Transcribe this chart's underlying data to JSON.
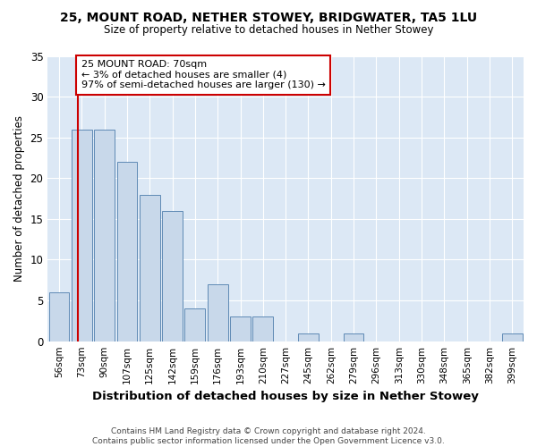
{
  "title1": "25, MOUNT ROAD, NETHER STOWEY, BRIDGWATER, TA5 1LU",
  "title2": "Size of property relative to detached houses in Nether Stowey",
  "xlabel": "Distribution of detached houses by size in Nether Stowey",
  "ylabel": "Number of detached properties",
  "categories": [
    "56sqm",
    "73sqm",
    "90sqm",
    "107sqm",
    "125sqm",
    "142sqm",
    "159sqm",
    "176sqm",
    "193sqm",
    "210sqm",
    "227sqm",
    "245sqm",
    "262sqm",
    "279sqm",
    "296sqm",
    "313sqm",
    "330sqm",
    "348sqm",
    "365sqm",
    "382sqm",
    "399sqm"
  ],
  "values": [
    6,
    26,
    26,
    22,
    18,
    16,
    4,
    7,
    3,
    3,
    0,
    1,
    0,
    1,
    0,
    0,
    0,
    0,
    0,
    0,
    1
  ],
  "bar_color": "#c8d8ea",
  "bar_edge_color": "#5f8ab5",
  "plot_bg_color": "#dce8f5",
  "fig_bg_color": "#ffffff",
  "grid_color": "#ffffff",
  "vline_color": "#cc0000",
  "annotation_text": "25 MOUNT ROAD: 70sqm\n← 3% of detached houses are smaller (4)\n97% of semi-detached houses are larger (130) →",
  "annotation_box_facecolor": "#ffffff",
  "annotation_box_edgecolor": "#cc0000",
  "footnote": "Contains HM Land Registry data © Crown copyright and database right 2024.\nContains public sector information licensed under the Open Government Licence v3.0.",
  "ylim": [
    0,
    35
  ],
  "yticks": [
    0,
    5,
    10,
    15,
    20,
    25,
    30,
    35
  ]
}
